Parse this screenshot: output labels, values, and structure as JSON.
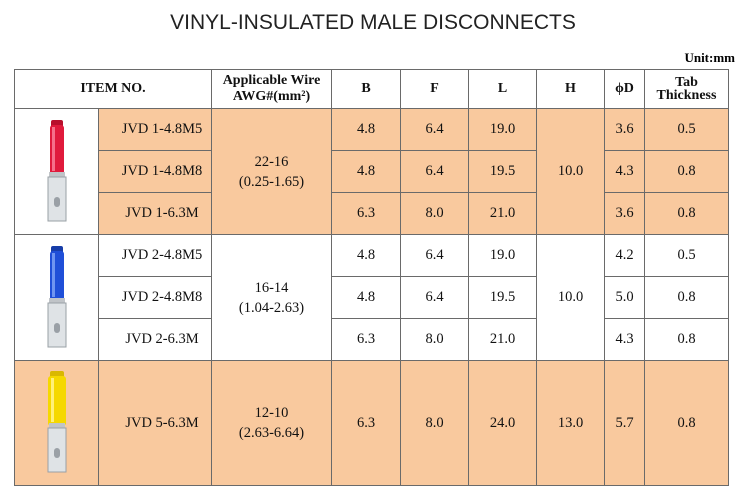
{
  "title": "VINYL-INSULATED MALE DISCONNECTS",
  "unit": "Unit:mm",
  "headers": {
    "item": "ITEM NO.",
    "wire_line1": "Applicable Wire",
    "wire_line2": "AWG#(mm²)",
    "b": "B",
    "f": "F",
    "l": "L",
    "h": "H",
    "d": "ϕD",
    "tab_line1": "Tab",
    "tab_line2": "Thickness"
  },
  "groups": [
    {
      "color": "red",
      "insulator_hex": "#e01a3c",
      "wire_awg": "22-16",
      "wire_mm2": "(0.25-1.65)",
      "h": "10.0",
      "rows": [
        {
          "item": "JVD 1-4.8M5",
          "b": "4.8",
          "f": "6.4",
          "l": "19.0",
          "d": "3.6",
          "t": "0.5"
        },
        {
          "item": "JVD 1-4.8M8",
          "b": "4.8",
          "f": "6.4",
          "l": "19.5",
          "d": "4.3",
          "t": "0.8"
        },
        {
          "item": "JVD 1-6.3M",
          "b": "6.3",
          "f": "8.0",
          "l": "21.0",
          "d": "3.6",
          "t": "0.8"
        }
      ]
    },
    {
      "color": "blue",
      "insulator_hex": "#1f4fd8",
      "wire_awg": "16-14",
      "wire_mm2": "(1.04-2.63)",
      "h": "10.0",
      "rows": [
        {
          "item": "JVD 2-4.8M5",
          "b": "4.8",
          "f": "6.4",
          "l": "19.0",
          "d": "4.2",
          "t": "0.5"
        },
        {
          "item": "JVD 2-4.8M8",
          "b": "4.8",
          "f": "6.4",
          "l": "19.5",
          "d": "5.0",
          "t": "0.8"
        },
        {
          "item": "JVD 2-6.3M",
          "b": "6.3",
          "f": "8.0",
          "l": "21.0",
          "d": "4.3",
          "t": "0.8"
        }
      ]
    },
    {
      "color": "yellow",
      "insulator_hex": "#f5d800",
      "wire_awg": "12-10",
      "wire_mm2": "(2.63-6.64)",
      "h": "13.0",
      "rows": [
        {
          "item": "JVD 5-6.3M",
          "b": "6.3",
          "f": "8.0",
          "l": "24.0",
          "d": "5.7",
          "t": "0.8"
        }
      ]
    }
  ],
  "colors": {
    "orange_fill": "#f9c99e",
    "border": "#6a6a6a"
  }
}
